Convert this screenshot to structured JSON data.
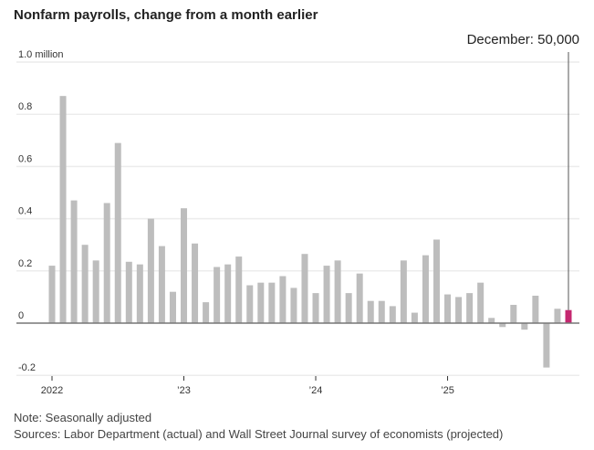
{
  "chart_data": {
    "type": "bar",
    "title": "Nonfarm payrolls, change from a month earlier",
    "ylabel": "",
    "xlabel": "",
    "ylim": [
      -0.2,
      1.0
    ],
    "yticks": [
      {
        "value": 1.0,
        "label": "1.0 million"
      },
      {
        "value": 0.8,
        "label": "0.8"
      },
      {
        "value": 0.6,
        "label": "0.6"
      },
      {
        "value": 0.4,
        "label": "0.4"
      },
      {
        "value": 0.2,
        "label": "0.2"
      },
      {
        "value": 0,
        "label": "0"
      },
      {
        "value": -0.2,
        "label": "-0.2"
      }
    ],
    "xticks": [
      {
        "index": 0,
        "label": "2022"
      },
      {
        "index": 12,
        "label": "’23"
      },
      {
        "index": 24,
        "label": "’24"
      },
      {
        "index": 36,
        "label": "’25"
      }
    ],
    "grid": true,
    "values": [
      0.22,
      0.87,
      0.47,
      0.3,
      0.24,
      0.46,
      0.69,
      0.235,
      0.225,
      0.4,
      0.295,
      0.12,
      0.44,
      0.305,
      0.08,
      0.215,
      0.225,
      0.255,
      0.145,
      0.155,
      0.155,
      0.18,
      0.135,
      0.265,
      0.115,
      0.22,
      0.24,
      0.115,
      0.19,
      0.085,
      0.085,
      0.065,
      0.24,
      0.04,
      0.26,
      0.32,
      0.11,
      0.1,
      0.115,
      0.155,
      0.02,
      -0.015,
      0.07,
      -0.025,
      0.105,
      -0.17,
      0.055,
      0.05
    ],
    "highlight_index": 47,
    "annotation": "December: 50,000",
    "colors": {
      "bar": "#bdbdbd",
      "highlight": "#c4276f",
      "grid": "#ececec",
      "axis": "#777777"
    }
  },
  "notes": {
    "note": "Note: Seasonally adjusted",
    "sources": "Sources: Labor Department (actual) and Wall Street Journal survey of economists (projected)"
  }
}
